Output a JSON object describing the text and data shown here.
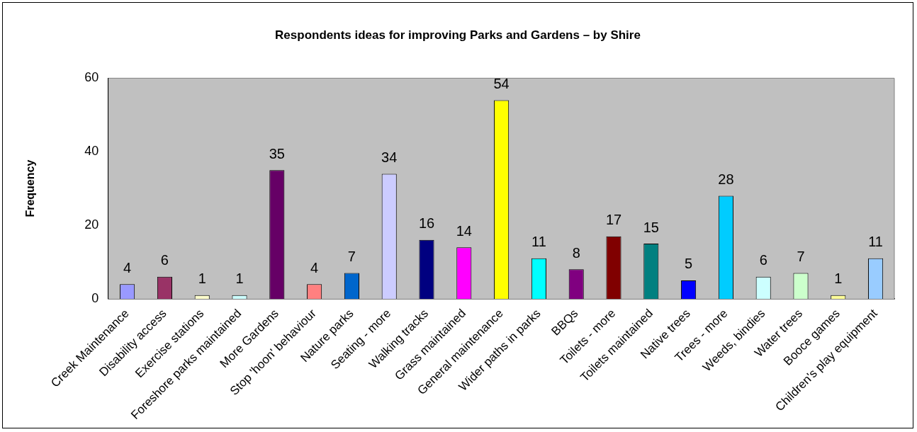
{
  "chart_data": {
    "type": "bar",
    "title": "Respondents ideas for improving Parks and Gardens – by Shire",
    "ylabel": "Frequency",
    "categories": [
      "Creek Maintenance",
      "Disability access",
      "Exercise stations",
      "Foreshore parks maintained",
      "More Gardens",
      "Stop 'hoon' behaviour",
      "Nature parks",
      "Seating - more",
      "Walking tracks",
      "Grass maintained",
      "General maintenance",
      "Wider paths in parks",
      "BBQs",
      "Toilets - more",
      "Toilets maintained",
      "Native trees",
      "Trees - more",
      "Weeds, bindies",
      "Water trees",
      "Booce games",
      "Children's play equipment"
    ],
    "values": [
      4,
      6,
      1,
      1,
      35,
      4,
      7,
      34,
      16,
      14,
      54,
      11,
      8,
      17,
      15,
      5,
      28,
      6,
      7,
      1,
      11
    ],
    "colors": [
      "#9999ff",
      "#993366",
      "#ffffcc",
      "#ccffff",
      "#660066",
      "#ff8080",
      "#0066cc",
      "#ccccff",
      "#000080",
      "#ff00ff",
      "#ffff00",
      "#00ffff",
      "#800080",
      "#800000",
      "#008080",
      "#0000ff",
      "#00ccff",
      "#ccffff",
      "#ccffcc",
      "#ffff99",
      "#99ccff"
    ],
    "ylim": [
      0,
      60
    ],
    "yticks": [
      0,
      20,
      40,
      60
    ],
    "grid": false,
    "legend": false,
    "data_labels": true
  }
}
